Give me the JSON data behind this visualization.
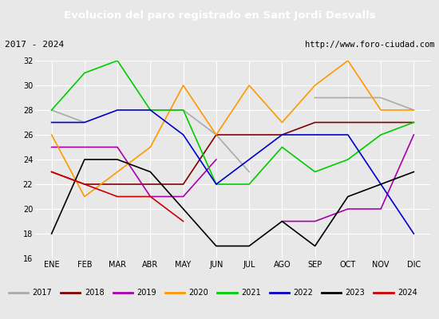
{
  "title": "Evolucion del paro registrado en Sant Jordi Desvalls",
  "subtitle_left": "2017 - 2024",
  "subtitle_right": "http://www.foro-ciudad.com",
  "months": [
    "ENE",
    "FEB",
    "MAR",
    "ABR",
    "MAY",
    "JUN",
    "JUL",
    "AGO",
    "SEP",
    "OCT",
    "NOV",
    "DIC"
  ],
  "ylim": [
    16,
    32
  ],
  "yticks": [
    16,
    18,
    20,
    22,
    24,
    26,
    28,
    30,
    32
  ],
  "series": {
    "2017": {
      "color": "#aaaaaa",
      "values": [
        28,
        27,
        null,
        28,
        28,
        26,
        23,
        null,
        29,
        29,
        29,
        28
      ]
    },
    "2018": {
      "color": "#800000",
      "values": [
        23,
        22,
        22,
        22,
        22,
        26,
        26,
        26,
        27,
        27,
        27,
        27
      ]
    },
    "2019": {
      "color": "#aa00aa",
      "values": [
        25,
        25,
        25,
        21,
        21,
        24,
        null,
        19,
        19,
        20,
        20,
        26
      ]
    },
    "2020": {
      "color": "#ff9900",
      "values": [
        26,
        21,
        23,
        25,
        30,
        26,
        30,
        27,
        30,
        32,
        28,
        28
      ]
    },
    "2021": {
      "color": "#00cc00",
      "values": [
        28,
        31,
        32,
        28,
        28,
        22,
        22,
        25,
        23,
        24,
        26,
        27
      ]
    },
    "2022": {
      "color": "#0000cc",
      "values": [
        27,
        27,
        28,
        28,
        26,
        22,
        24,
        26,
        26,
        26,
        22,
        18
      ]
    },
    "2023": {
      "color": "#000000",
      "values": [
        18,
        24,
        24,
        23,
        20,
        17,
        17,
        19,
        17,
        21,
        22,
        23
      ]
    },
    "2024": {
      "color": "#cc0000",
      "values": [
        23,
        22,
        21,
        21,
        19,
        null,
        null,
        null,
        null,
        null,
        null,
        null
      ]
    }
  },
  "background_color": "#e8e8e8",
  "plot_background": "#e8e8e8",
  "title_bg": "#4472c4",
  "title_color": "#ffffff",
  "subtitle_bg": "#d3d3d3",
  "grid_color": "#ffffff",
  "legend_years": [
    "2017",
    "2018",
    "2019",
    "2020",
    "2021",
    "2022",
    "2023",
    "2024"
  ],
  "legend_colors": [
    "#aaaaaa",
    "#800000",
    "#aa00aa",
    "#ff9900",
    "#00cc00",
    "#0000cc",
    "#000000",
    "#cc0000"
  ]
}
